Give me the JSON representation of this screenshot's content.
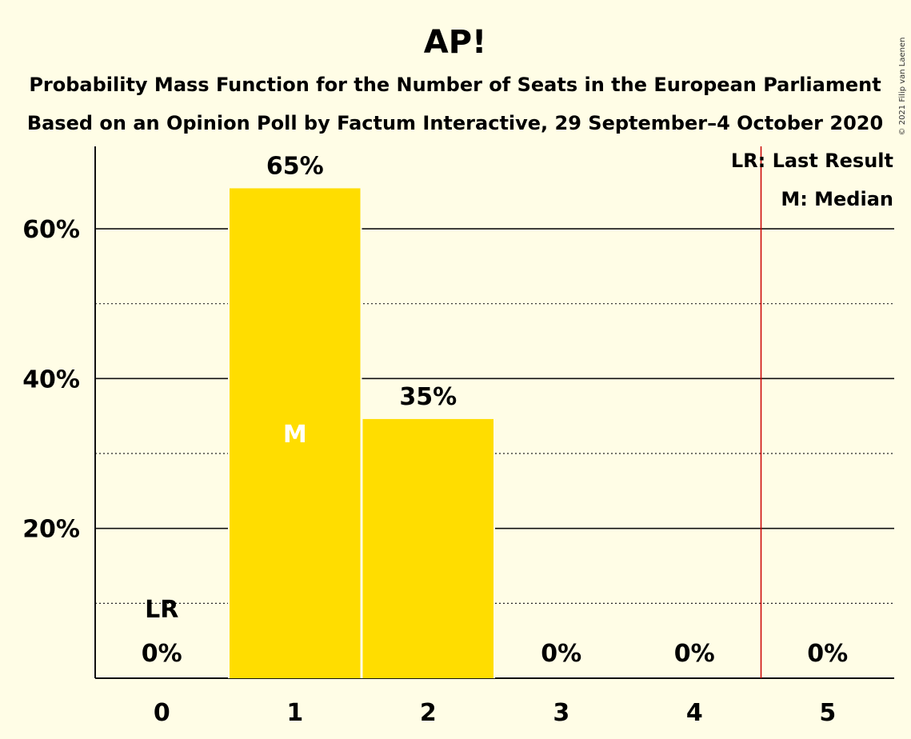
{
  "copyright": "© 2021 Filip van Laenen",
  "chart_data": {
    "type": "bar",
    "title": "AP!",
    "subtitle_1": "Probability Mass Function for the Number of Seats in the European Parliament",
    "subtitle_2": "Based on an Opinion Poll by Factum Interactive, 29 September–4 October 2020",
    "xlabel": "",
    "ylabel": "",
    "categories": [
      "0",
      "1",
      "2",
      "3",
      "4",
      "5"
    ],
    "values": [
      0,
      65.4,
      34.6,
      0,
      0,
      0
    ],
    "value_labels": [
      "0%",
      "65%",
      "35%",
      "0%",
      "0%",
      "0%"
    ],
    "ylim": [
      0,
      71
    ],
    "y_major_ticks": [
      20,
      40,
      60
    ],
    "y_major_labels": [
      "20%",
      "40%",
      "60%"
    ],
    "y_minor_ticks": [
      10,
      30,
      50
    ],
    "bar_color": "#FFDD00",
    "last_result": {
      "seats": 0,
      "label": "LR"
    },
    "last_result_line_at": 4.5,
    "last_result_line_color": "#CC0000",
    "median": {
      "seats": 1,
      "label": "M"
    },
    "legend": [
      "LR: Last Result",
      "M: Median"
    ],
    "legend_position": "top-right"
  }
}
